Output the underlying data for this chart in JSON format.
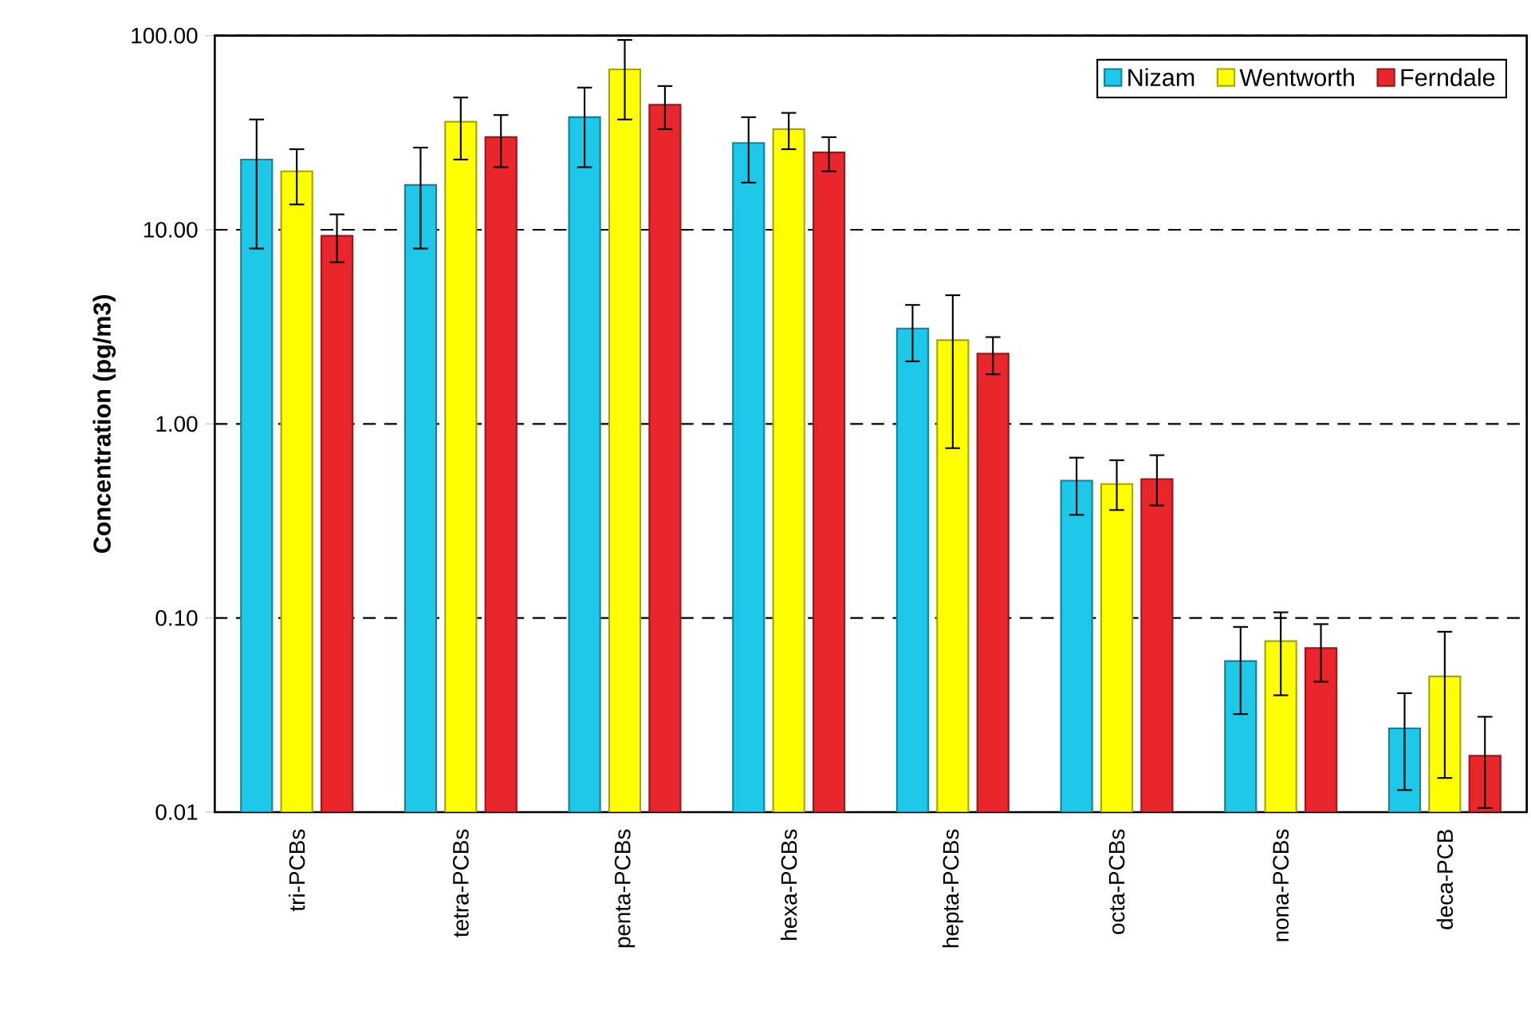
{
  "chart_data": {
    "type": "bar",
    "ylabel": "Concentration (pg/m3)",
    "categories": [
      "tri-PCBs",
      "tetra-PCBs",
      "penta-PCBs",
      "hexa-PCBs",
      "hepta-PCBs",
      "octa-PCBs",
      "nona-PCBs",
      "deca-PCB"
    ],
    "series": [
      {
        "name": "Nizam",
        "color": "#1ec8e8",
        "values": [
          23,
          17,
          38,
          28,
          3.1,
          0.51,
          0.06,
          0.027
        ],
        "errors": [
          [
            8,
            37
          ],
          [
            8,
            26.5
          ],
          [
            21,
            54
          ],
          [
            17.5,
            38
          ],
          [
            2.1,
            4.1
          ],
          [
            0.34,
            0.67
          ],
          [
            0.032,
            0.09
          ],
          [
            0.013,
            0.041
          ]
        ]
      },
      {
        "name": "Wentworth",
        "color": "#ffff00",
        "values": [
          20,
          36,
          67,
          33,
          2.7,
          0.49,
          0.076,
          0.05
        ],
        "errors": [
          [
            13.5,
            26
          ],
          [
            23,
            48
          ],
          [
            37,
            95
          ],
          [
            26,
            40
          ],
          [
            0.75,
            4.6
          ],
          [
            0.36,
            0.65
          ],
          [
            0.04,
            0.107
          ],
          [
            0.015,
            0.085
          ]
        ]
      },
      {
        "name": "Ferndale",
        "color": "#e8262b",
        "values": [
          9.3,
          30,
          44,
          25,
          2.3,
          0.52,
          0.07,
          0.0195
        ],
        "errors": [
          [
            6.8,
            12
          ],
          [
            21,
            39
          ],
          [
            33,
            55
          ],
          [
            20,
            30
          ],
          [
            1.8,
            2.8
          ],
          [
            0.38,
            0.69
          ],
          [
            0.047,
            0.093
          ],
          [
            0.0105,
            0.031
          ]
        ]
      }
    ],
    "log": true,
    "ylim": [
      0.01,
      100
    ],
    "yticks": [
      {
        "value": 0.01,
        "label": "0.01"
      },
      {
        "value": 0.1,
        "label": "0.10"
      },
      {
        "value": 1,
        "label": "1.00"
      },
      {
        "value": 10,
        "label": "10.00"
      },
      {
        "value": 100,
        "label": "100.00"
      }
    ],
    "grid": "y",
    "legend": "top right"
  }
}
